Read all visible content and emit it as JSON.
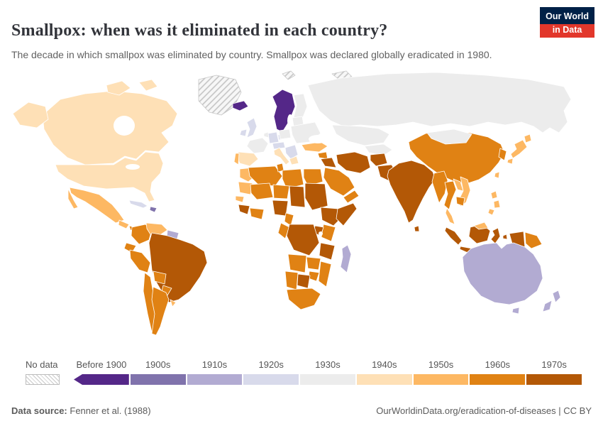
{
  "header": {
    "title": "Smallpox: when was it eliminated in each country?",
    "subtitle": "The decade in which smallpox was eliminated by country. Smallpox was declared globally eradicated in 1980."
  },
  "logo": {
    "line1": "Our World",
    "line2": "in Data"
  },
  "legend": {
    "no_data_label": "No data",
    "items": [
      {
        "label": "Before 1900",
        "color": "#542788"
      },
      {
        "label": "1900s",
        "color": "#8073ac"
      },
      {
        "label": "1910s",
        "color": "#b2abd2"
      },
      {
        "label": "1920s",
        "color": "#d8daeb"
      },
      {
        "label": "1930s",
        "color": "#ececec"
      },
      {
        "label": "1940s",
        "color": "#fee0b6"
      },
      {
        "label": "1950s",
        "color": "#fdb863"
      },
      {
        "label": "1960s",
        "color": "#e08214"
      },
      {
        "label": "1970s",
        "color": "#b35806"
      }
    ]
  },
  "footer": {
    "source_label": "Data source:",
    "source_value": "Fenner et al. (1988)",
    "right_text": "OurWorldinData.org/eradication-of-diseases | CC BY"
  },
  "chart_data": {
    "type": "choropleth_map",
    "title": "Smallpox: when was it eliminated in each country?",
    "unit": "decade of smallpox elimination",
    "categories": [
      "No data",
      "Before 1900",
      "1900s",
      "1910s",
      "1920s",
      "1930s",
      "1940s",
      "1950s",
      "1960s",
      "1970s"
    ],
    "regions": [
      {
        "id": "greenland",
        "name": "Greenland",
        "decade": "No data"
      },
      {
        "id": "svalbard",
        "name": "Svalbard",
        "decade": "No data"
      },
      {
        "id": "canada",
        "name": "Canada",
        "decade": "1940s"
      },
      {
        "id": "usa",
        "name": "United States",
        "decade": "1940s"
      },
      {
        "id": "mexico",
        "name": "Mexico",
        "decade": "1950s"
      },
      {
        "id": "guatemala",
        "name": "Guatemala",
        "decade": "1950s"
      },
      {
        "id": "panama",
        "name": "Panama",
        "decade": "1960s"
      },
      {
        "id": "cuba",
        "name": "Cuba",
        "decade": "1920s"
      },
      {
        "id": "hispaniola",
        "name": "Haiti & Dominican Republic",
        "decade": "1900s"
      },
      {
        "id": "colombia",
        "name": "Colombia",
        "decade": "1960s"
      },
      {
        "id": "venezuela",
        "name": "Venezuela",
        "decade": "1950s"
      },
      {
        "id": "guianas",
        "name": "Guyana, Suriname & French Guiana",
        "decade": "1910s"
      },
      {
        "id": "ecuador",
        "name": "Ecuador",
        "decade": "1960s"
      },
      {
        "id": "peru",
        "name": "Peru",
        "decade": "1960s"
      },
      {
        "id": "brazil",
        "name": "Brazil",
        "decade": "1970s"
      },
      {
        "id": "bolivia",
        "name": "Bolivia",
        "decade": "1960s"
      },
      {
        "id": "paraguay",
        "name": "Paraguay",
        "decade": "1960s"
      },
      {
        "id": "chile",
        "name": "Chile",
        "decade": "1960s"
      },
      {
        "id": "argentina",
        "name": "Argentina",
        "decade": "1960s"
      },
      {
        "id": "uruguay",
        "name": "Uruguay",
        "decade": "1950s"
      },
      {
        "id": "iceland",
        "name": "Iceland",
        "decade": "Before 1900"
      },
      {
        "id": "scandinavia",
        "name": "Norway & Sweden",
        "decade": "Before 1900"
      },
      {
        "id": "denmark",
        "name": "Denmark",
        "decade": "1920s"
      },
      {
        "id": "finland",
        "name": "Finland",
        "decade": "1930s"
      },
      {
        "id": "uk",
        "name": "United Kingdom",
        "decade": "1920s"
      },
      {
        "id": "ireland",
        "name": "Ireland",
        "decade": "1920s"
      },
      {
        "id": "france",
        "name": "France",
        "decade": "1930s"
      },
      {
        "id": "spain",
        "name": "Spain",
        "decade": "1940s"
      },
      {
        "id": "portugal",
        "name": "Portugal",
        "decade": "1950s"
      },
      {
        "id": "germany",
        "name": "Germany",
        "decade": "1920s"
      },
      {
        "id": "benelux",
        "name": "Belgium & Netherlands",
        "decade": "1930s"
      },
      {
        "id": "poland",
        "name": "Poland",
        "decade": "1930s"
      },
      {
        "id": "czech-austria",
        "name": "Austria & Czechia",
        "decade": "1920s"
      },
      {
        "id": "italy",
        "name": "Italy",
        "decade": "1940s"
      },
      {
        "id": "balkans",
        "name": "Balkans",
        "decade": "1920s"
      },
      {
        "id": "greece",
        "name": "Greece",
        "decade": "1940s"
      },
      {
        "id": "east-europe",
        "name": "Ukraine & Romania",
        "decade": "1930s"
      },
      {
        "id": "baltics",
        "name": "Baltic states",
        "decade": "1930s"
      },
      {
        "id": "russia",
        "name": "Russia (USSR)",
        "decade": "1930s"
      },
      {
        "id": "kazakhstan",
        "name": "Kazakhstan",
        "decade": "1930s"
      },
      {
        "id": "central-asia",
        "name": "Central Asia",
        "decade": "1930s"
      },
      {
        "id": "turkey",
        "name": "Turkey",
        "decade": "1950s"
      },
      {
        "id": "syria",
        "name": "Syria",
        "decade": "1960s"
      },
      {
        "id": "iraq",
        "name": "Iraq",
        "decade": "1970s"
      },
      {
        "id": "iran",
        "name": "Iran",
        "decade": "1970s"
      },
      {
        "id": "afghanistan",
        "name": "Afghanistan",
        "decade": "1970s"
      },
      {
        "id": "pakistan",
        "name": "Pakistan",
        "decade": "1970s"
      },
      {
        "id": "saudi-arabia",
        "name": "Saudi Arabia",
        "decade": "1960s"
      },
      {
        "id": "yemen-oman",
        "name": "Yemen & Oman",
        "decade": "1960s"
      },
      {
        "id": "morocco",
        "name": "Morocco",
        "decade": "1950s"
      },
      {
        "id": "algeria",
        "name": "Algeria",
        "decade": "1960s"
      },
      {
        "id": "tunisia",
        "name": "Tunisia",
        "decade": "1960s"
      },
      {
        "id": "libya",
        "name": "Libya",
        "decade": "1960s"
      },
      {
        "id": "egypt",
        "name": "Egypt",
        "decade": "1960s"
      },
      {
        "id": "mauritania",
        "name": "Mauritania",
        "decade": "1950s"
      },
      {
        "id": "mali",
        "name": "Mali",
        "decade": "1960s"
      },
      {
        "id": "niger",
        "name": "Niger",
        "decade": "1960s"
      },
      {
        "id": "chad",
        "name": "Chad",
        "decade": "1970s"
      },
      {
        "id": "sudan",
        "name": "Sudan",
        "decade": "1970s"
      },
      {
        "id": "senegal",
        "name": "Senegal",
        "decade": "1950s"
      },
      {
        "id": "guinea",
        "name": "Guinea & Sierra Leone",
        "decade": "1970s"
      },
      {
        "id": "ghana",
        "name": "Ghana & Ivory Coast",
        "decade": "1960s"
      },
      {
        "id": "nigeria",
        "name": "Nigeria",
        "decade": "1970s"
      },
      {
        "id": "cameroon",
        "name": "Cameroon",
        "decade": "1960s"
      },
      {
        "id": "ethiopia",
        "name": "Ethiopia",
        "decade": "1970s"
      },
      {
        "id": "somalia",
        "name": "Somalia",
        "decade": "1970s"
      },
      {
        "id": "kenya",
        "name": "Kenya",
        "decade": "1960s"
      },
      {
        "id": "uganda",
        "name": "Uganda",
        "decade": "1970s"
      },
      {
        "id": "drc",
        "name": "Democratic Republic of Congo",
        "decade": "1970s"
      },
      {
        "id": "congo-gabon",
        "name": "Congo & Gabon",
        "decade": "1960s"
      },
      {
        "id": "tanzania",
        "name": "Tanzania",
        "decade": "1970s"
      },
      {
        "id": "angola",
        "name": "Angola",
        "decade": "1960s"
      },
      {
        "id": "zambia",
        "name": "Zambia",
        "decade": "1960s"
      },
      {
        "id": "mozambique",
        "name": "Mozambique",
        "decade": "1960s"
      },
      {
        "id": "zimbabwe",
        "name": "Zimbabwe",
        "decade": "1960s"
      },
      {
        "id": "botswana",
        "name": "Botswana",
        "decade": "1970s"
      },
      {
        "id": "namibia",
        "name": "Namibia",
        "decade": "1960s"
      },
      {
        "id": "south-africa",
        "name": "South Africa",
        "decade": "1960s"
      },
      {
        "id": "madagascar",
        "name": "Madagascar",
        "decade": "1910s"
      },
      {
        "id": "mongolia",
        "name": "Mongolia",
        "decade": "1930s"
      },
      {
        "id": "china",
        "name": "China",
        "decade": "1960s"
      },
      {
        "id": "korea",
        "name": "Korea",
        "decade": "1960s"
      },
      {
        "id": "japan",
        "name": "Japan",
        "decade": "1950s"
      },
      {
        "id": "taiwan",
        "name": "Taiwan",
        "decade": "1950s"
      },
      {
        "id": "india",
        "name": "India",
        "decade": "1970s"
      },
      {
        "id": "sri-lanka",
        "name": "Sri Lanka",
        "decade": "1970s"
      },
      {
        "id": "myanmar",
        "name": "Myanmar",
        "decade": "1960s"
      },
      {
        "id": "thailand",
        "name": "Thailand",
        "decade": "1960s"
      },
      {
        "id": "laos",
        "name": "Laos",
        "decade": "1950s"
      },
      {
        "id": "vietnam",
        "name": "Vietnam",
        "decade": "1950s"
      },
      {
        "id": "cambodia",
        "name": "Cambodia",
        "decade": "1960s"
      },
      {
        "id": "malaysia",
        "name": "Malaysia",
        "decade": "1950s"
      },
      {
        "id": "philippines",
        "name": "Philippines",
        "decade": "1950s"
      },
      {
        "id": "indonesia",
        "name": "Indonesia",
        "decade": "1970s"
      },
      {
        "id": "png",
        "name": "Papua New Guinea",
        "decade": "1960s"
      },
      {
        "id": "australia",
        "name": "Australia",
        "decade": "1910s"
      },
      {
        "id": "new-zealand",
        "name": "New Zealand",
        "decade": "1910s"
      }
    ]
  }
}
